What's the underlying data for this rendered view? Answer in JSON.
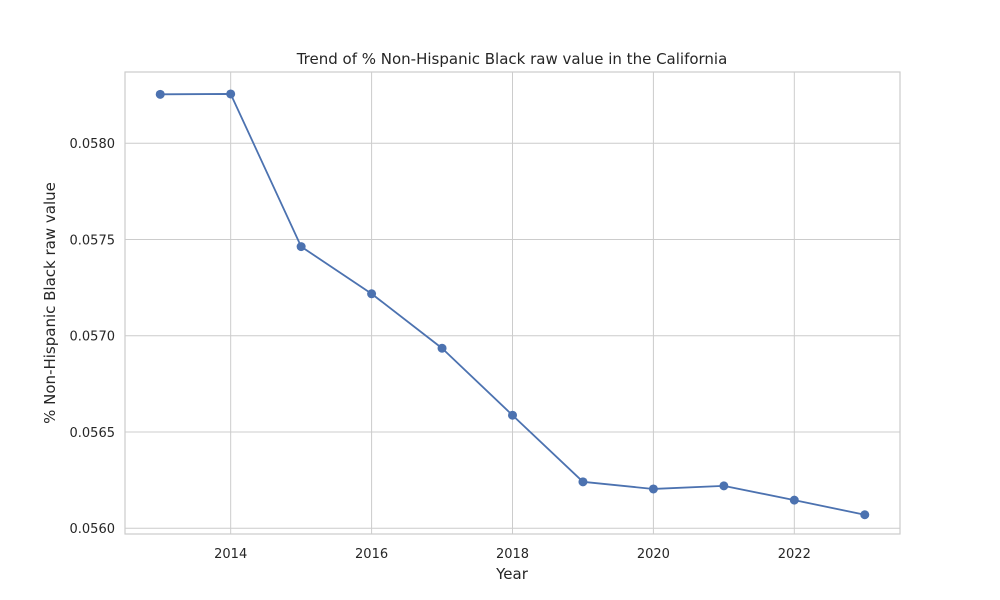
{
  "chart_data": {
    "type": "line",
    "title": "Trend of % Non-Hispanic Black raw value in the California",
    "xlabel": "Year",
    "ylabel": "% Non-Hispanic Black raw value",
    "xlim": [
      2012.5,
      2023.5
    ],
    "ylim": [
      0.05597,
      0.05837
    ],
    "x_ticks": [
      2014,
      2016,
      2018,
      2020,
      2022
    ],
    "y_ticks": [
      0.056,
      0.0565,
      0.057,
      0.0575,
      0.058
    ],
    "y_tick_labels": [
      "0.0560",
      "0.0565",
      "0.0570",
      "0.0575",
      "0.0580"
    ],
    "grid": true,
    "line_color": "#4c72b0",
    "series": [
      {
        "x": [
          2013,
          2014,
          2015,
          2016,
          2017,
          2018,
          2019,
          2020,
          2021,
          2022,
          2023
        ],
        "values": [
          0.058254,
          0.058256,
          0.057463,
          0.057218,
          0.056935,
          0.056587,
          0.056241,
          0.056204,
          0.05622,
          0.056146,
          0.05607
        ]
      }
    ]
  }
}
